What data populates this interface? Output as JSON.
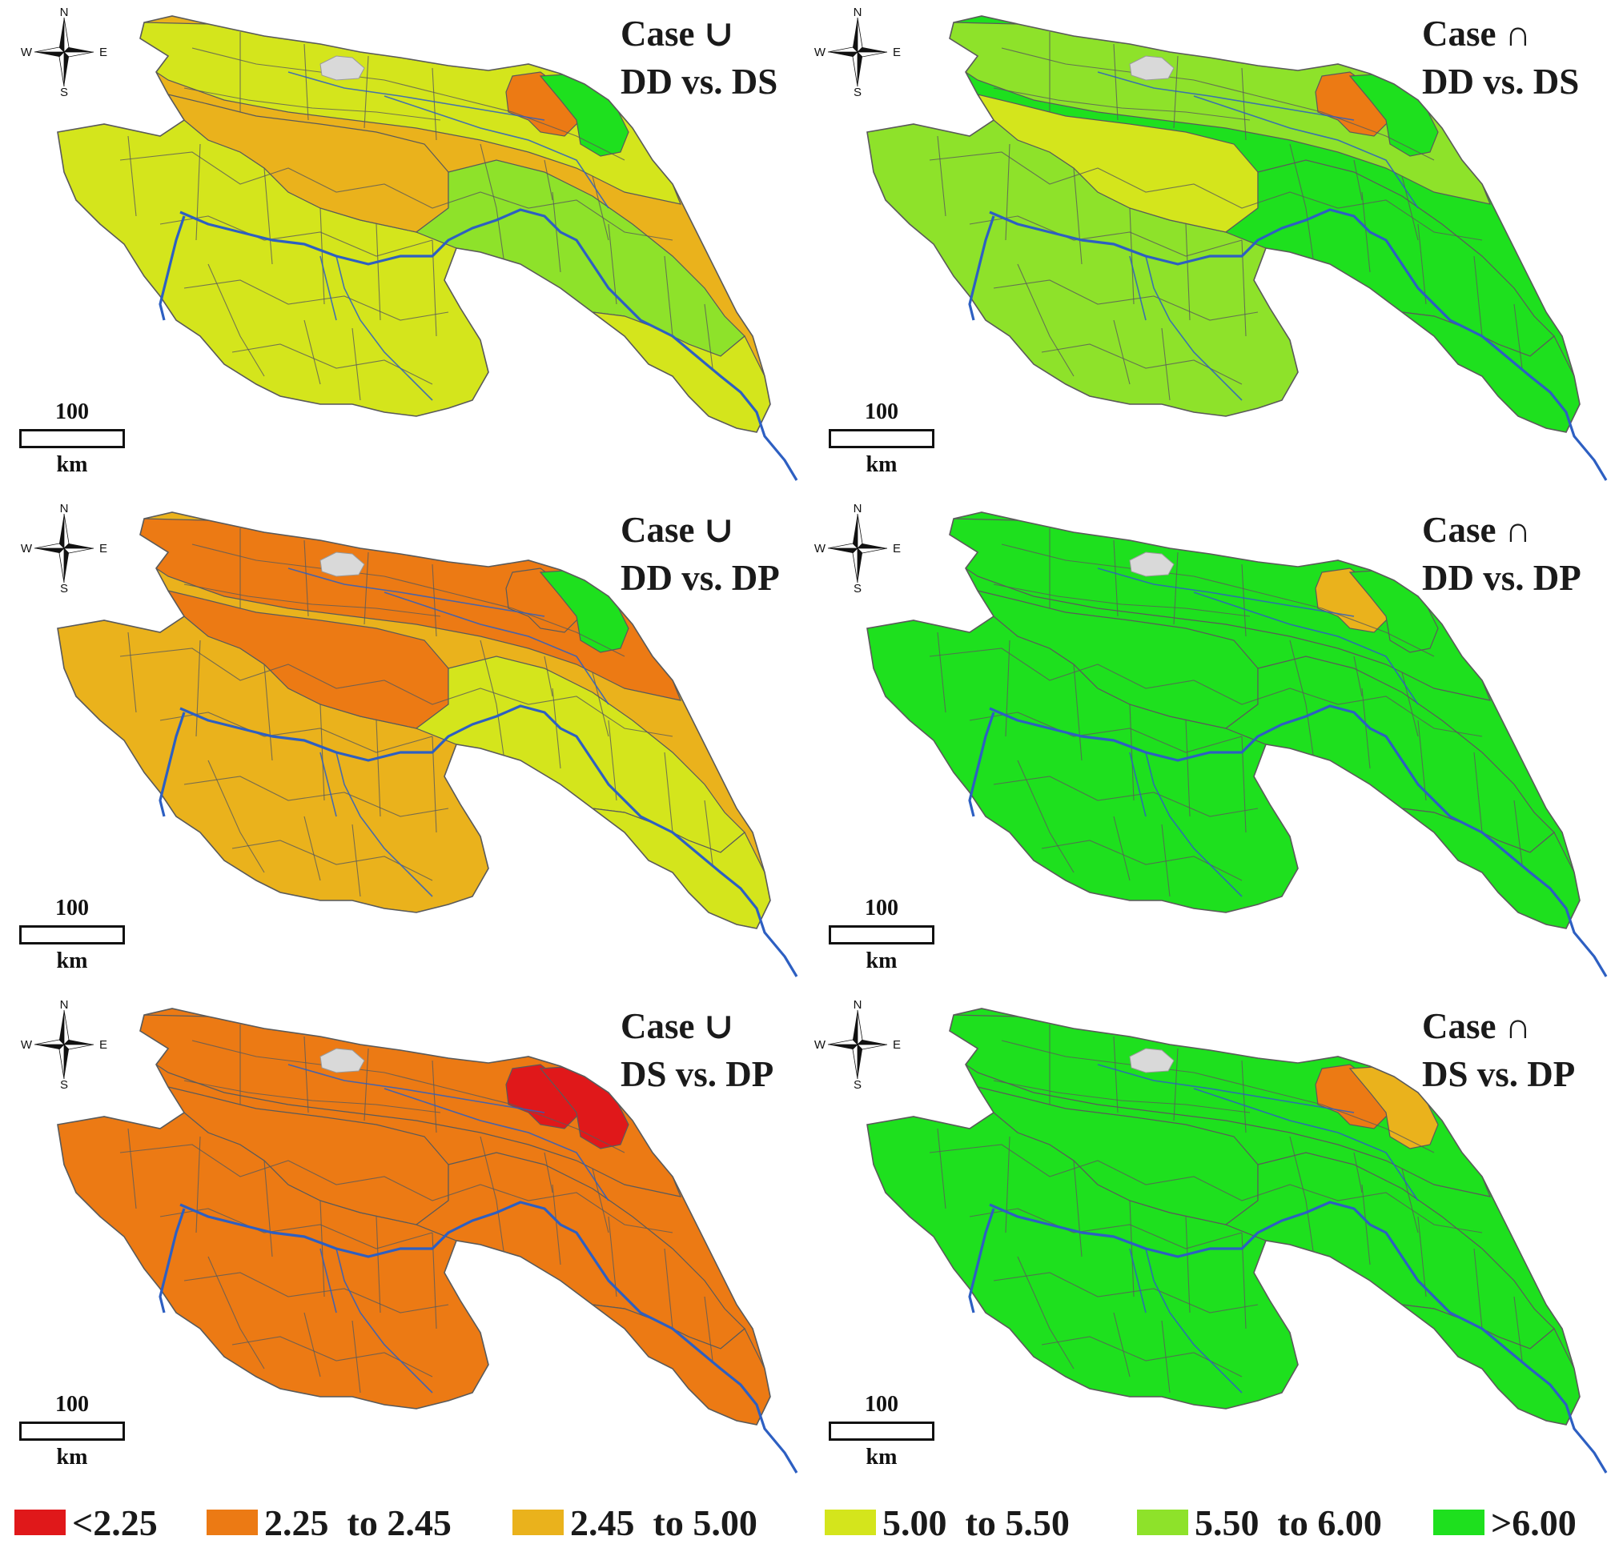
{
  "panels": [
    {
      "title_line1": "Case ∪",
      "title_line2": "DD vs. DS",
      "base_color": "#eab21c",
      "zones": [
        {
          "color": "#d4e51c"
        },
        {
          "color": "#d4e51c"
        },
        {
          "color": "#eab21c"
        },
        {
          "color": "#8ee22a"
        },
        {
          "color": "#d4e51c"
        },
        {
          "color": "#ec7a14"
        },
        {
          "color": "#1ee01e"
        }
      ]
    },
    {
      "title_line1": "Case ∩",
      "title_line2": "DD vs. DS",
      "base_color": "#1ee01e",
      "zones": [
        {
          "color": "#8ee22a"
        },
        {
          "color": "#8ee22a"
        },
        {
          "color": "#d4e51c"
        },
        {
          "color": "#1ee01e"
        },
        {
          "color": "#1ee01e"
        },
        {
          "color": "#ec7a14"
        },
        {
          "color": "#1ee01e"
        }
      ]
    },
    {
      "title_line1": "Case ∪",
      "title_line2": "DD vs. DP",
      "base_color": "#eab21c",
      "zones": [
        {
          "color": "#ec7a14"
        },
        {
          "color": "#eab21c"
        },
        {
          "color": "#ec7a14"
        },
        {
          "color": "#d4e51c"
        },
        {
          "color": "#d4e51c"
        },
        {
          "color": "#ec7a14"
        },
        {
          "color": "#1ee01e"
        }
      ]
    },
    {
      "title_line1": "Case ∩",
      "title_line2": "DD vs. DP",
      "base_color": "#1ee01e",
      "zones": [
        {
          "color": "#1ee01e"
        },
        {
          "color": "#1ee01e"
        },
        {
          "color": "#1ee01e"
        },
        {
          "color": "#1ee01e"
        },
        {
          "color": "#1ee01e"
        },
        {
          "color": "#eab21c"
        },
        {
          "color": "#1ee01e"
        }
      ]
    },
    {
      "title_line1": "Case ∪",
      "title_line2": "DS vs. DP",
      "base_color": "#ec7a14",
      "zones": [
        {
          "color": "#ec7a14"
        },
        {
          "color": "#ec7a14"
        },
        {
          "color": "#ec7a14"
        },
        {
          "color": "#ec7a14"
        },
        {
          "color": "#ec7a14"
        },
        {
          "color": "#e0181a"
        },
        {
          "color": "#e0181a"
        }
      ]
    },
    {
      "title_line1": "Case ∩",
      "title_line2": "DS vs. DP",
      "base_color": "#1ee01e",
      "zones": [
        {
          "color": "#1ee01e"
        },
        {
          "color": "#1ee01e"
        },
        {
          "color": "#1ee01e"
        },
        {
          "color": "#1ee01e"
        },
        {
          "color": "#1ee01e"
        },
        {
          "color": "#ec7a14"
        },
        {
          "color": "#eab21c"
        }
      ]
    }
  ],
  "scale_bar": {
    "value": "100",
    "unit": "km"
  },
  "compass": {
    "n": "N",
    "s": "S",
    "e": "E",
    "w": "W"
  },
  "legend": [
    {
      "label": "<2.25",
      "color": "#e0181a"
    },
    {
      "label": "2.25  to 2.45",
      "color": "#ec7a14"
    },
    {
      "label": "2.45  to 5.00",
      "color": "#eab21c"
    },
    {
      "label": "5.00  to 5.50",
      "color": "#d4e51c"
    },
    {
      "label": "5.50  to 6.00",
      "color": "#8ee22a"
    },
    {
      "label": ">6.00",
      "color": "#1ee01e"
    }
  ],
  "colors": {
    "river": "#2d5fc2",
    "lake": "#d9d9d9",
    "boundary": "#5a5a5a"
  }
}
